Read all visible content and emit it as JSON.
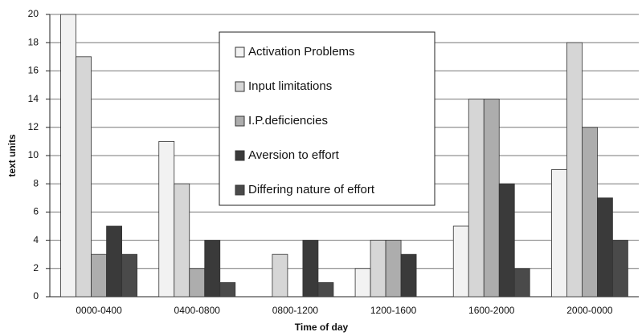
{
  "chart_data": {
    "type": "bar",
    "x_label": "Time of day",
    "y_label": "text units",
    "categories": [
      "0000-0400",
      "0400-0800",
      "0800-1200",
      "1200-1600",
      "1600-2000",
      "2000-0000"
    ],
    "series": [
      {
        "name": "Activation Problems",
        "color": "#f2f2f2",
        "values": [
          20,
          11,
          0,
          2,
          5,
          9
        ]
      },
      {
        "name": "Input limitations",
        "color": "#d6d6d6",
        "values": [
          17,
          8,
          3,
          4,
          14,
          18
        ]
      },
      {
        "name": "I.P.deficiencies",
        "color": "#adadad",
        "values": [
          3,
          2,
          0,
          4,
          14,
          12
        ]
      },
      {
        "name": "Aversion to effort",
        "color": "#3a3a3a",
        "values": [
          5,
          4,
          4,
          3,
          8,
          7
        ]
      },
      {
        "name": "Differing nature of effort",
        "color": "#4a4a4a",
        "values": [
          3,
          1,
          1,
          0,
          2,
          4
        ]
      }
    ],
    "ylim": [
      0,
      20
    ],
    "yticks": [
      0,
      2,
      4,
      6,
      8,
      10,
      12,
      14,
      16,
      18,
      20
    ],
    "grid": true
  }
}
